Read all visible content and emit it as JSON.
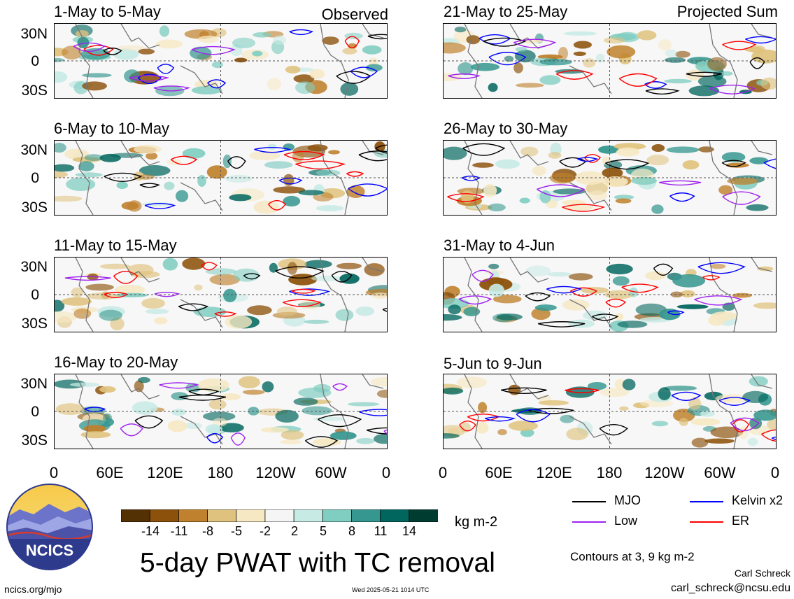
{
  "observed_label": "Observed",
  "projected_label": "Projected Sum",
  "panels_left": [
    {
      "title": "1-May to 5-May"
    },
    {
      "title": "6-May to 10-May"
    },
    {
      "title": "11-May to 15-May"
    },
    {
      "title": "16-May to 20-May"
    }
  ],
  "panels_right": [
    {
      "title": "21-May to 25-May"
    },
    {
      "title": "26-May to 30-May"
    },
    {
      "title": "31-May to 4-Jun"
    },
    {
      "title": "5-Jun to 9-Jun"
    }
  ],
  "lat_labels": [
    "30N",
    "0",
    "30S"
  ],
  "lon_labels": [
    "0",
    "60E",
    "120E",
    "180",
    "120W",
    "60W",
    "0"
  ],
  "colorbar": {
    "unit": "kg m-2",
    "ticks": [
      "-14",
      "-11",
      "-8",
      "-5",
      "-2",
      "2",
      "5",
      "8",
      "11",
      "14"
    ],
    "colors": [
      "#543005",
      "#8c510a",
      "#bf812d",
      "#dfc27d",
      "#f6e8c3",
      "#f5f5f5",
      "#c7eae5",
      "#80cdc1",
      "#35978f",
      "#01665e",
      "#003c30"
    ]
  },
  "legend": [
    {
      "label": "MJO",
      "color": "#000000"
    },
    {
      "label": "Kelvin x2",
      "color": "#0000ff"
    },
    {
      "label": "Low",
      "color": "#a020f0"
    },
    {
      "label": "ER",
      "color": "#ff0000"
    }
  ],
  "logo_text": "NCICS",
  "main_title": "5-day PWAT with TC removal",
  "contours_note": "Contours at 3, 9 kg m-2",
  "author": "Carl Schreck",
  "email": "carl_schreck@ncsu.edu",
  "website": "ncics.org/mjo",
  "timestamp": "Wed 2025-05-21 1014 UTC"
}
